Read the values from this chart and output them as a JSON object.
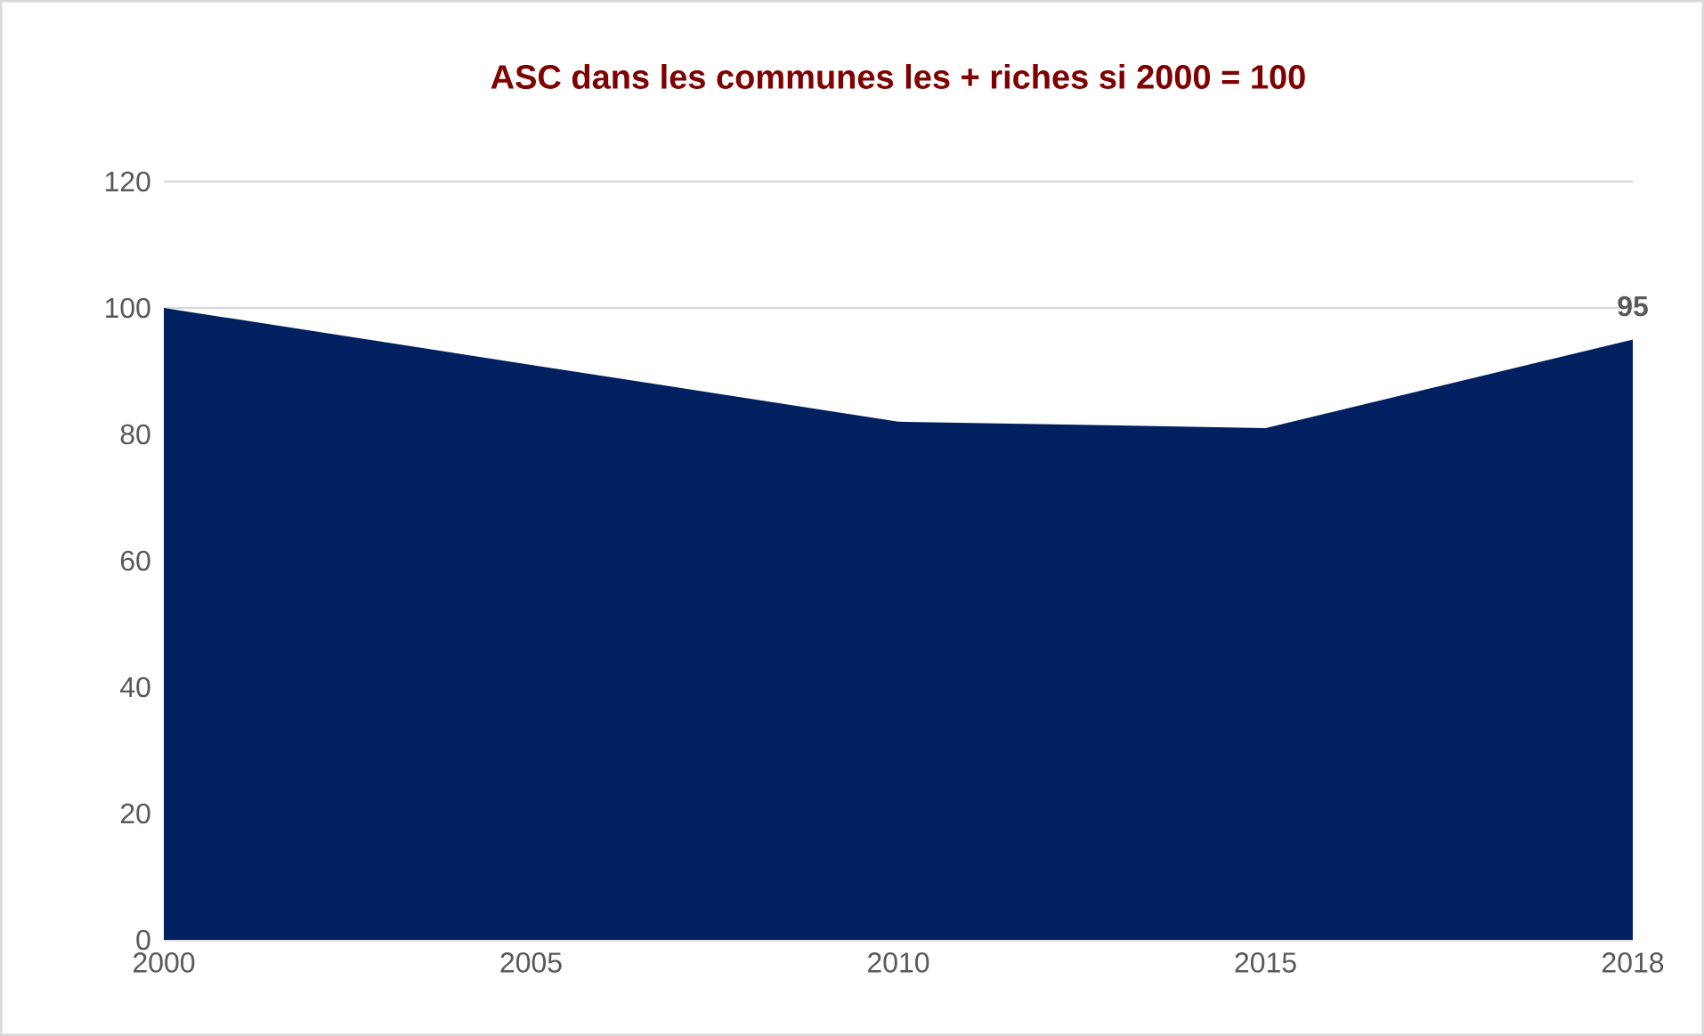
{
  "chart_data": {
    "type": "area",
    "title": "ASC dans les communes les + riches si 2000 = 100",
    "categories": [
      "2000",
      "2005",
      "2010",
      "2015",
      "2018"
    ],
    "values": [
      100,
      91,
      82,
      81,
      95
    ],
    "value_labels": [
      null,
      null,
      null,
      null,
      "95"
    ],
    "color": "#002060",
    "ylim": [
      0,
      120
    ],
    "yticks": [
      0,
      20,
      40,
      60,
      80,
      100,
      120
    ],
    "grid": "y"
  }
}
